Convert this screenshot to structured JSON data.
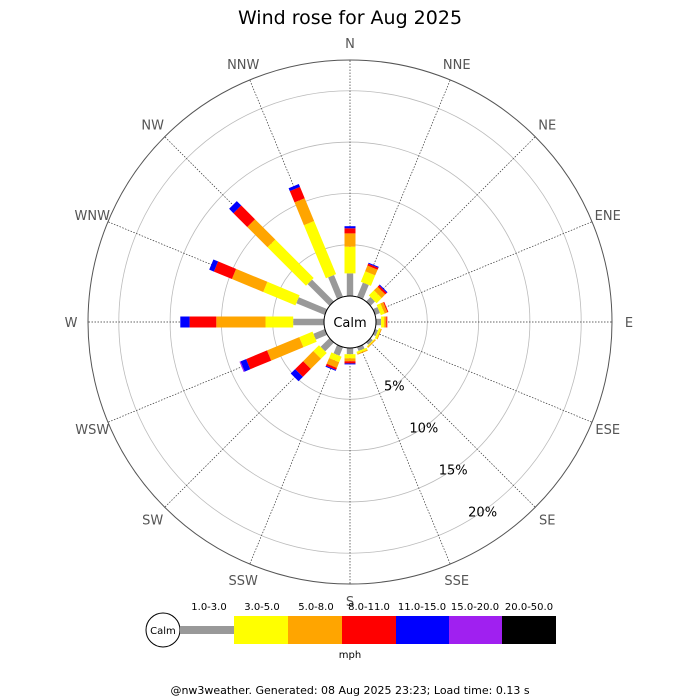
{
  "chart_data": {
    "type": "wind-rose",
    "title": "Wind rose for Aug 2025",
    "directions": [
      "N",
      "NNE",
      "NE",
      "ENE",
      "E",
      "ESE",
      "SE",
      "SSE",
      "S",
      "SSW",
      "SW",
      "WSW",
      "W",
      "WNW",
      "NW",
      "NNW"
    ],
    "radial_ticks": [
      "5%",
      "10%",
      "15%",
      "20%"
    ],
    "radial_max": 23,
    "calm_label": "Calm",
    "units": "mph",
    "speed_bins": [
      "1.0-3.0",
      "3.0-5.0",
      "5.0-8.0",
      "8.0-11.0",
      "11.0-15.0",
      "15.0-20.0",
      "20.0-50.0"
    ],
    "colors": [
      "#999999",
      "#ffff00",
      "#ffa500",
      "#ff0000",
      "#0000ff",
      "#a020f0",
      "#000000"
    ],
    "series": [
      {
        "dir": "N",
        "values": [
          2.2,
          2.6,
          1.3,
          0.5,
          0.2,
          0,
          0
        ]
      },
      {
        "dir": "NNE",
        "values": [
          1.5,
          1.1,
          0.6,
          0.2,
          0.1,
          0,
          0
        ]
      },
      {
        "dir": "NE",
        "values": [
          0.6,
          0.7,
          0.5,
          0.2,
          0.1,
          0,
          0
        ]
      },
      {
        "dir": "ENE",
        "values": [
          0.5,
          0.4,
          0.3,
          0.1,
          0,
          0,
          0
        ]
      },
      {
        "dir": "E",
        "values": [
          0.5,
          0.3,
          0.2,
          0.1,
          0,
          0,
          0
        ]
      },
      {
        "dir": "ESE",
        "values": [
          0.3,
          0.2,
          0.1,
          0,
          0,
          0,
          0
        ]
      },
      {
        "dir": "SE",
        "values": [
          0.3,
          0.1,
          0.1,
          0,
          0,
          0,
          0
        ]
      },
      {
        "dir": "SSE",
        "values": [
          0.4,
          0.2,
          0.1,
          0,
          0,
          0,
          0
        ]
      },
      {
        "dir": "S",
        "values": [
          0.6,
          0.4,
          0.3,
          0.2,
          0.1,
          0,
          0
        ]
      },
      {
        "dir": "SSW",
        "values": [
          0.9,
          0.6,
          0.6,
          0.2,
          0.1,
          0,
          0
        ]
      },
      {
        "dir": "SW",
        "values": [
          1.2,
          0.8,
          1.4,
          1.1,
          0.6,
          0,
          0
        ]
      },
      {
        "dir": "WSW",
        "values": [
          1.2,
          1.4,
          3.4,
          2.2,
          0.6,
          0.1,
          0
        ]
      },
      {
        "dir": "W",
        "values": [
          3.0,
          2.7,
          4.8,
          2.6,
          0.9,
          0,
          0
        ]
      },
      {
        "dir": "WNW",
        "values": [
          3.0,
          3.4,
          3.3,
          1.9,
          0.5,
          0,
          0
        ]
      },
      {
        "dir": "NW",
        "values": [
          3.0,
          5.3,
          2.8,
          1.9,
          0.6,
          0,
          0
        ]
      },
      {
        "dir": "NNW",
        "values": [
          2.3,
          5.6,
          2.4,
          1.2,
          0.3,
          0,
          0
        ]
      }
    ]
  },
  "footer": "@nw3weather. Generated: 08 Aug 2025 23:23; Load time: 0.13 s"
}
